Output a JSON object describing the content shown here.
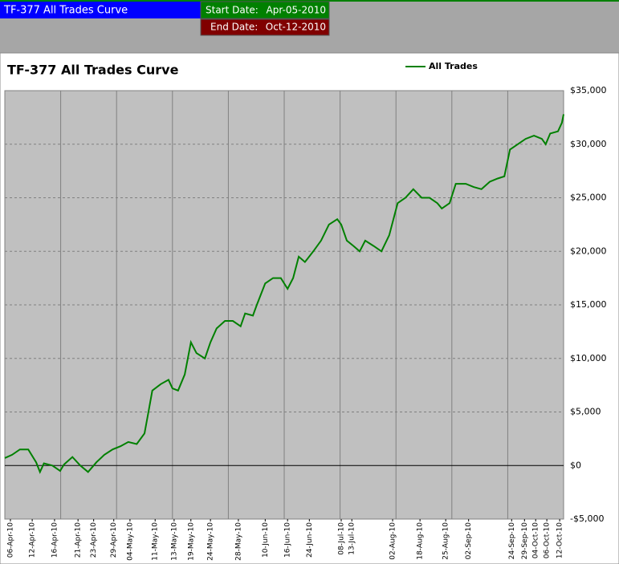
{
  "header": {
    "title": "TF-377 All Trades Curve",
    "start_label": "Start Date:",
    "start_value": "Apr-05-2010",
    "end_label": "End Date:",
    "end_value": "Oct-12-2010"
  },
  "chart_data": {
    "type": "line",
    "title": "TF-377 All Trades Curve",
    "x": [
      0,
      1.3,
      2.7,
      4.2,
      5.6,
      6.3,
      7.0,
      8.5,
      9.9,
      10.6,
      12.1,
      13.5,
      14.9,
      16.4,
      17.8,
      19.3,
      20.7,
      22.1,
      23.6,
      25.0,
      25.7,
      26.4,
      27.9,
      29.3,
      30.0,
      31.0,
      32.2,
      33.3,
      34.3,
      35.8,
      36.8,
      37.9,
      39.4,
      40.8,
      42.2,
      43.0,
      44.4,
      45.1,
      46.6,
      48.0,
      49.4,
      50.6,
      51.6,
      52.6,
      53.7,
      55.2,
      56.6,
      58.0,
      59.5,
      60.2,
      61.2,
      62.4,
      63.5,
      64.5,
      66.0,
      67.4,
      68.8,
      70.3,
      71.7,
      73.1,
      74.6,
      76.0,
      77.4,
      78.2,
      79.6,
      80.7,
      82.5,
      83.9,
      85.3,
      86.8,
      88.2,
      89.4,
      90.4,
      91.8,
      93.2,
      94.7,
      96.1,
      96.8,
      97.6,
      99.0,
      99.7,
      100
    ],
    "series": [
      {
        "name": "All Trades",
        "color": "#008000",
        "values": [
          700,
          1000,
          1500,
          1500,
          300,
          -600,
          200,
          0,
          -500,
          100,
          800,
          0,
          -600,
          300,
          1000,
          1500,
          1800,
          2200,
          2000,
          3000,
          5000,
          7000,
          7600,
          8000,
          7200,
          7000,
          8500,
          11500,
          10500,
          10000,
          11500,
          12800,
          13500,
          13500,
          13000,
          14200,
          14000,
          15000,
          17000,
          17500,
          17500,
          16500,
          17500,
          19500,
          19000,
          20000,
          21000,
          22500,
          23000,
          22500,
          21000,
          20500,
          20000,
          21000,
          20500,
          20000,
          21500,
          24500,
          25000,
          25800,
          25000,
          25000,
          24500,
          24000,
          24500,
          26300,
          26300,
          26000,
          25800,
          26500,
          26800,
          27000,
          29500,
          30000,
          30500,
          30800,
          30500,
          30000,
          31000,
          31200,
          32000,
          32800
        ]
      }
    ],
    "xlim": [
      0,
      100
    ],
    "xgrid": [
      0,
      10,
      20,
      30,
      40,
      50,
      60,
      70,
      80,
      90,
      100
    ],
    "xticks": [
      {
        "value": 1.0,
        "label": "06-Apr-10"
      },
      {
        "value": 4.9,
        "label": "12-Apr-10"
      },
      {
        "value": 8.9,
        "label": "16-Apr-10"
      },
      {
        "value": 13.1,
        "label": "21-Apr-10"
      },
      {
        "value": 15.9,
        "label": "23-Apr-10"
      },
      {
        "value": 19.5,
        "label": "29-Apr-10"
      },
      {
        "value": 22.4,
        "label": "04-May-10"
      },
      {
        "value": 26.9,
        "label": "11-May-10"
      },
      {
        "value": 30.3,
        "label": "13-May-10"
      },
      {
        "value": 33.3,
        "label": "19-May-10"
      },
      {
        "value": 36.8,
        "label": "24-May-10"
      },
      {
        "value": 41.8,
        "label": "28-May-10"
      },
      {
        "value": 46.6,
        "label": "10-Jun-10"
      },
      {
        "value": 50.6,
        "label": "16-Jun-10"
      },
      {
        "value": 54.5,
        "label": "24-Jun-10"
      },
      {
        "value": 60.2,
        "label": "08-Jul-10"
      },
      {
        "value": 62.1,
        "label": "13-Jul-10"
      },
      {
        "value": 69.4,
        "label": "02-Aug-10"
      },
      {
        "value": 74.3,
        "label": "18-Aug-10"
      },
      {
        "value": 78.9,
        "label": "25-Aug-10"
      },
      {
        "value": 83.0,
        "label": "02-Sep-10"
      },
      {
        "value": 90.7,
        "label": "24-Sep-10"
      },
      {
        "value": 93.0,
        "label": "29-Sep-10"
      },
      {
        "value": 95.0,
        "label": "04-Oct-10"
      },
      {
        "value": 97.0,
        "label": "06-Oct-10"
      },
      {
        "value": 99.3,
        "label": "12-Oct-10"
      }
    ],
    "ylim": [
      -5000,
      35000
    ],
    "yticks": [
      {
        "value": -5000,
        "label": "-$5,000"
      },
      {
        "value": 0,
        "label": "$0"
      },
      {
        "value": 5000,
        "label": "$5,000"
      },
      {
        "value": 10000,
        "label": "$10,000"
      },
      {
        "value": 15000,
        "label": "$15,000"
      },
      {
        "value": 20000,
        "label": "$20,000"
      },
      {
        "value": 25000,
        "label": "$25,000"
      },
      {
        "value": 30000,
        "label": "$30,000"
      },
      {
        "value": 35000,
        "label": "$35,000"
      }
    ],
    "grid": true,
    "legend": "top"
  }
}
